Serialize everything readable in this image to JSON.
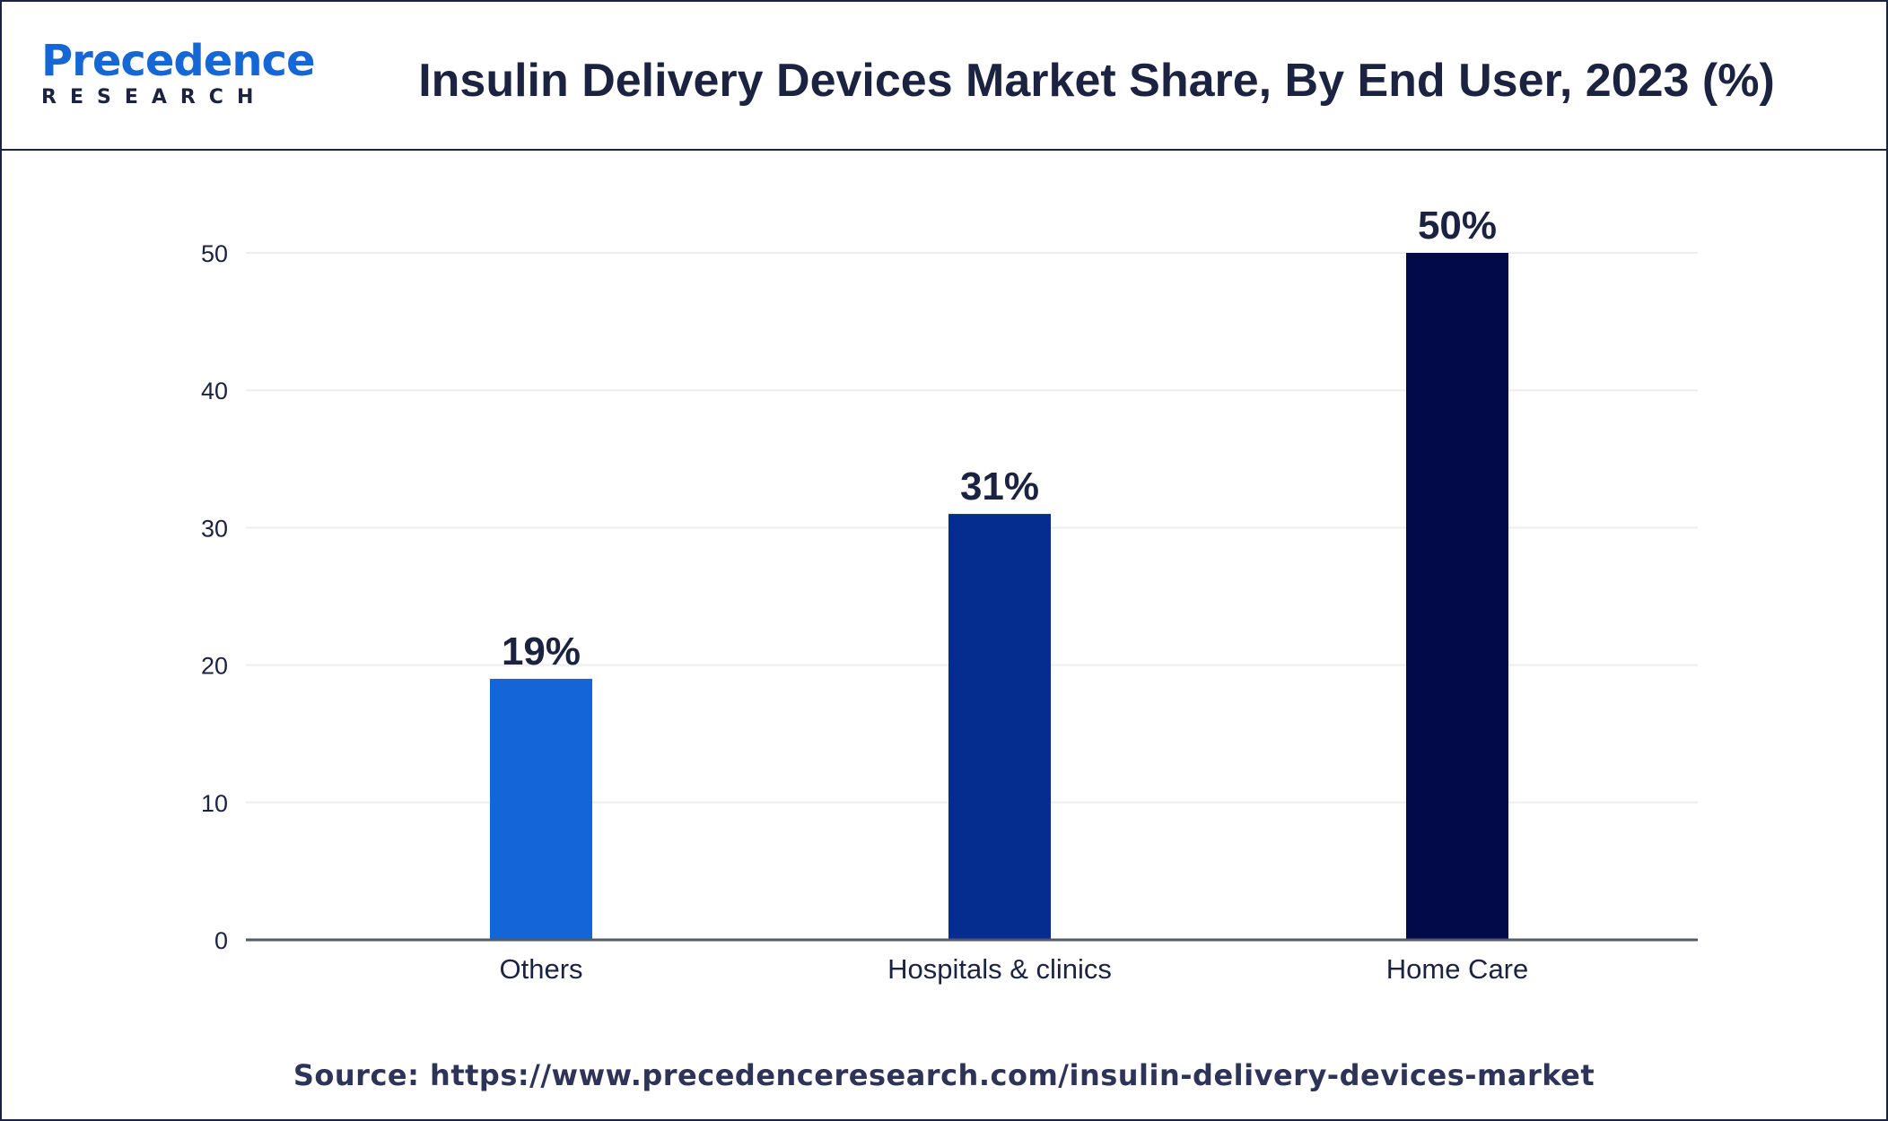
{
  "header": {
    "logo_word": "Precedence",
    "logo_sub": "RESEARCH",
    "title": "Insulin Delivery Devices Market Share, By End User, 2023 (%)"
  },
  "source_text": "Source: https://www.precedenceresearch.com/insulin-delivery-devices-market",
  "colors": {
    "others": "#1466d8",
    "hospitals": "#052d8f",
    "home_care": "#020a4a",
    "text": "#1c2341"
  },
  "chart_data": {
    "type": "bar",
    "title": "Insulin Delivery Devices Market Share, By End User, 2023 (%)",
    "xlabel": "",
    "ylabel": "",
    "categories": [
      "Others",
      "Hospitals & clinics",
      "Home Care"
    ],
    "values": [
      19,
      31,
      50
    ],
    "value_labels": [
      "19%",
      "31%",
      "50%"
    ],
    "ylim": [
      0,
      50
    ],
    "yticks": [
      0,
      10,
      20,
      30,
      40,
      50
    ],
    "grid": true,
    "legend": "none"
  }
}
